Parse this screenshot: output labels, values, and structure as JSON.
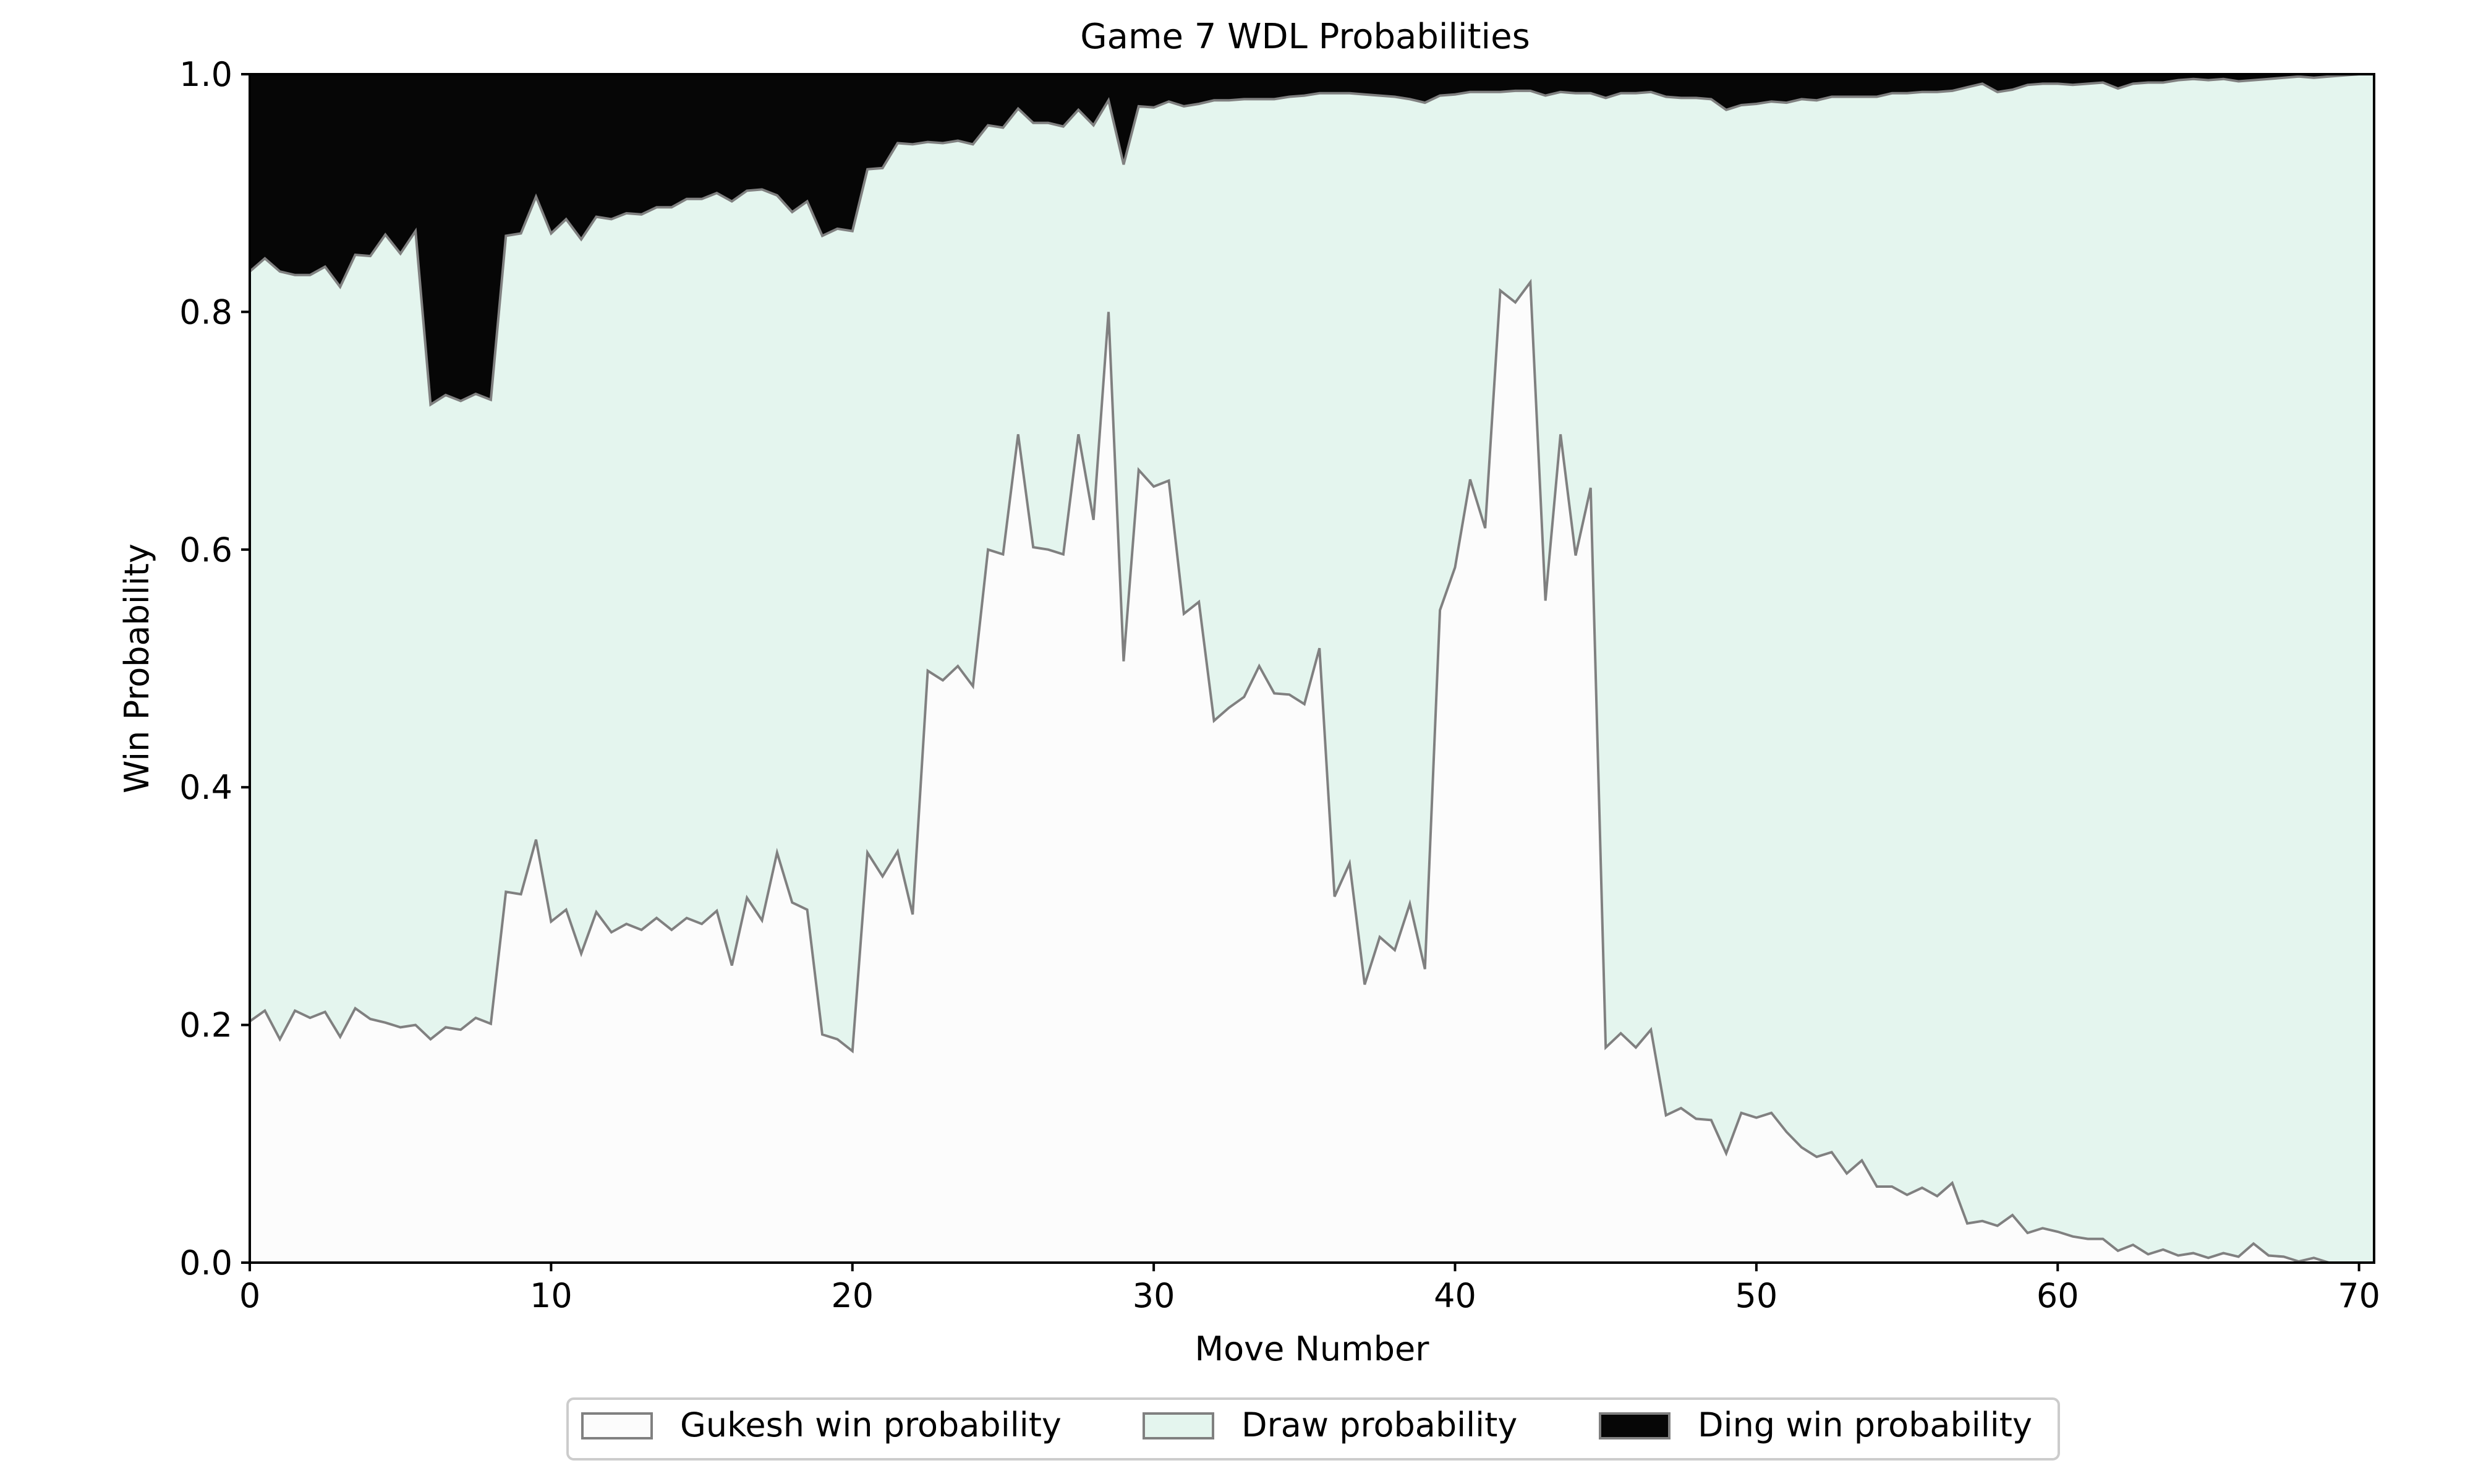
{
  "chart_data": {
    "type": "area",
    "stacked": true,
    "title": "Game 7 WDL Probabilities",
    "xlabel": "Move Number",
    "ylabel": "Win Probability",
    "xlim": [
      0,
      70.5
    ],
    "ylim": [
      0,
      1
    ],
    "xticks": [
      0,
      10,
      20,
      30,
      40,
      50,
      60,
      70
    ],
    "yticks": [
      0.0,
      0.2,
      0.4,
      0.6,
      0.8,
      1.0
    ],
    "xtick_labels": [
      "0",
      "10",
      "20",
      "30",
      "40",
      "50",
      "60",
      "70"
    ],
    "ytick_labels": [
      "0.0",
      "0.2",
      "0.4",
      "0.6",
      "0.8",
      "1.0"
    ],
    "grid": false,
    "legend_position": "bottom-center",
    "series": [
      {
        "name": "Gukesh win probability",
        "color": "#fcfcfc",
        "edge_color": "#808080"
      },
      {
        "name": "Draw probability",
        "color": "#e4f5ee",
        "edge_color": "#808080"
      },
      {
        "name": "Ding win probability",
        "color": "#060606",
        "edge_color": "#808080"
      }
    ],
    "x": [
      0,
      0.5,
      1,
      1.5,
      2,
      2.5,
      3,
      3.5,
      4,
      4.5,
      5,
      5.5,
      6,
      6.5,
      7,
      7.5,
      8,
      8.5,
      9,
      9.5,
      10,
      10.5,
      11,
      11.5,
      12,
      12.5,
      13,
      13.5,
      14,
      14.5,
      15,
      15.5,
      16,
      16.5,
      17,
      17.5,
      18,
      18.5,
      19,
      19.5,
      20,
      20.5,
      21,
      21.5,
      22,
      22.5,
      23,
      23.5,
      24,
      24.5,
      25,
      25.5,
      26,
      26.5,
      27,
      27.5,
      28,
      28.5,
      29,
      29.5,
      30,
      30.5,
      31,
      31.5,
      32,
      32.5,
      33,
      33.5,
      34,
      34.5,
      35,
      35.5,
      36,
      36.5,
      37,
      37.5,
      38,
      38.5,
      39,
      39.5,
      40,
      40.5,
      41,
      41.5,
      42,
      42.5,
      43,
      43.5,
      44,
      44.5,
      45,
      45.5,
      46,
      46.5,
      47,
      47.5,
      48,
      48.5,
      49,
      49.5,
      50,
      50.5,
      51,
      51.5,
      52,
      52.5,
      53,
      53.5,
      54,
      54.5,
      55,
      55.5,
      56,
      56.5,
      57,
      57.5,
      58,
      58.5,
      59,
      59.5,
      60,
      60.5,
      61,
      61.5,
      62,
      62.5,
      63,
      63.5,
      64,
      64.5,
      65,
      65.5,
      66,
      66.5,
      67,
      67.5,
      68,
      68.5,
      69,
      69.5,
      70,
      70.5
    ],
    "gukesh_win": [
      0.203,
      0.212,
      0.188,
      0.212,
      0.206,
      0.211,
      0.19,
      0.214,
      0.205,
      0.202,
      0.198,
      0.2,
      0.188,
      0.198,
      0.196,
      0.206,
      0.201,
      0.312,
      0.31,
      0.356,
      0.287,
      0.297,
      0.26,
      0.295,
      0.278,
      0.285,
      0.28,
      0.29,
      0.28,
      0.29,
      0.285,
      0.296,
      0.25,
      0.307,
      0.288,
      0.345,
      0.303,
      0.297,
      0.192,
      0.188,
      0.178,
      0.345,
      0.325,
      0.346,
      0.293,
      0.498,
      0.49,
      0.502,
      0.485,
      0.6,
      0.596,
      0.697,
      0.602,
      0.6,
      0.596,
      0.697,
      0.625,
      0.8,
      0.506,
      0.667,
      0.653,
      0.658,
      0.546,
      0.556,
      0.456,
      0.467,
      0.476,
      0.502,
      0.479,
      0.478,
      0.47,
      0.517,
      0.308,
      0.336,
      0.234,
      0.274,
      0.263,
      0.302,
      0.247,
      0.549,
      0.585,
      0.659,
      0.618,
      0.818,
      0.808,
      0.825,
      0.557,
      0.697,
      0.595,
      0.652,
      0.181,
      0.193,
      0.181,
      0.196,
      0.124,
      0.13,
      0.121,
      0.12,
      0.092,
      0.126,
      0.122,
      0.126,
      0.11,
      0.097,
      0.089,
      0.093,
      0.075,
      0.086,
      0.064,
      0.064,
      0.057,
      0.063,
      0.056,
      0.067,
      0.033,
      0.035,
      0.031,
      0.04,
      0.025,
      0.029,
      0.026,
      0.022,
      0.02,
      0.02,
      0.01,
      0.015,
      0.007,
      0.011,
      0.006,
      0.008,
      0.004,
      0.008,
      0.005,
      0.016,
      0.006,
      0.005,
      0.001,
      0.004,
      0.0,
      0.0,
      0.0,
      0.0
    ],
    "gukesh_plus_draw": [
      0.834,
      0.845,
      0.834,
      0.831,
      0.831,
      0.838,
      0.821,
      0.848,
      0.847,
      0.865,
      0.849,
      0.868,
      0.722,
      0.73,
      0.725,
      0.731,
      0.726,
      0.864,
      0.866,
      0.897,
      0.866,
      0.878,
      0.861,
      0.88,
      0.878,
      0.883,
      0.882,
      0.888,
      0.888,
      0.895,
      0.895,
      0.9,
      0.893,
      0.902,
      0.903,
      0.898,
      0.884,
      0.893,
      0.864,
      0.87,
      0.868,
      0.92,
      0.921,
      0.942,
      0.941,
      0.943,
      0.942,
      0.944,
      0.941,
      0.957,
      0.955,
      0.971,
      0.959,
      0.959,
      0.956,
      0.97,
      0.957,
      0.978,
      0.924,
      0.973,
      0.972,
      0.977,
      0.973,
      0.975,
      0.978,
      0.978,
      0.979,
      0.979,
      0.979,
      0.981,
      0.982,
      0.984,
      0.984,
      0.984,
      0.983,
      0.982,
      0.981,
      0.979,
      0.976,
      0.982,
      0.983,
      0.985,
      0.985,
      0.985,
      0.986,
      0.986,
      0.982,
      0.985,
      0.984,
      0.984,
      0.98,
      0.984,
      0.984,
      0.985,
      0.981,
      0.98,
      0.98,
      0.979,
      0.97,
      0.974,
      0.975,
      0.977,
      0.976,
      0.979,
      0.978,
      0.981,
      0.981,
      0.981,
      0.981,
      0.984,
      0.984,
      0.985,
      0.985,
      0.986,
      0.989,
      0.992,
      0.985,
      0.987,
      0.991,
      0.992,
      0.992,
      0.991,
      0.992,
      0.993,
      0.988,
      0.992,
      0.993,
      0.993,
      0.995,
      0.996,
      0.995,
      0.996,
      0.994,
      0.995,
      0.996,
      0.997,
      0.998,
      0.997,
      0.998,
      0.999,
      1.0,
      1.0
    ]
  },
  "legend": {
    "items": [
      {
        "label": "Gukesh win probability",
        "color": "#fcfcfc"
      },
      {
        "label": "Draw probability",
        "color": "#e4f5ee"
      },
      {
        "label": "Ding win probability",
        "color": "#060606"
      }
    ]
  }
}
